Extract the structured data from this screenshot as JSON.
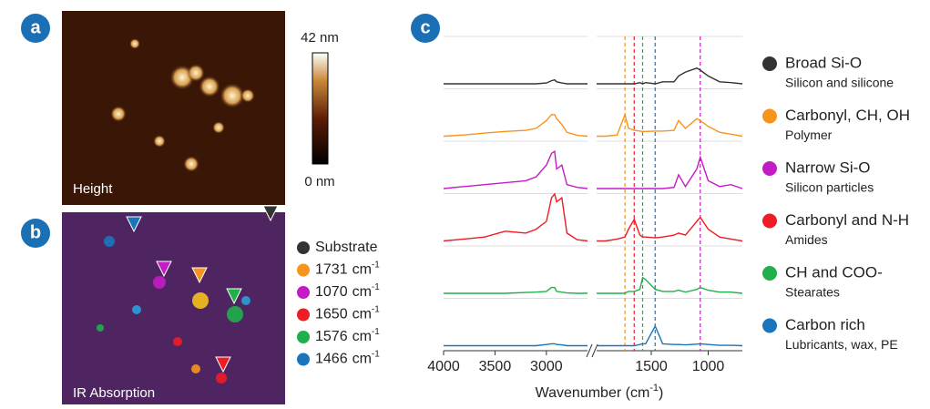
{
  "panels": {
    "a": {
      "label": "a",
      "caption": "Height"
    },
    "b": {
      "label": "b",
      "caption": "IR Absorption"
    },
    "c": {
      "label": "c"
    }
  },
  "colorbar": {
    "max_label": "42 nm",
    "min_label": "0 nm"
  },
  "markers": [
    {
      "name": "Substrate",
      "color": "#333333"
    },
    {
      "wavenumber": 1731,
      "unit": "cm",
      "unit_sup": "-1",
      "color": "#f7941d"
    },
    {
      "wavenumber": 1070,
      "unit": "cm",
      "unit_sup": "-1",
      "color": "#c41cc4"
    },
    {
      "wavenumber": 1650,
      "unit": "cm",
      "unit_sup": "-1",
      "color": "#ee1c25"
    },
    {
      "wavenumber": 1576,
      "unit": "cm",
      "unit_sup": "-1",
      "color": "#1fb04b"
    },
    {
      "wavenumber": 1466,
      "unit": "cm",
      "unit_sup": "-1",
      "color": "#1a75bc"
    }
  ],
  "chart_data": {
    "type": "line",
    "x_label": "Wavenumber (cm",
    "x_label_sup": "-1",
    "x_label_end": ")",
    "xlim_segments": [
      [
        4000,
        2600
      ],
      [
        1980,
        700
      ]
    ],
    "xticks": [
      4000,
      3500,
      3000,
      1500,
      1000
    ],
    "x": [
      4000,
      3800,
      3600,
      3400,
      3200,
      3100,
      3000,
      2950,
      2920,
      2900,
      2850,
      2800,
      2700,
      2600,
      1980,
      1900,
      1800,
      1731,
      1700,
      1650,
      1600,
      1576,
      1550,
      1466,
      1400,
      1300,
      1260,
      1200,
      1100,
      1070,
      1000,
      900,
      800,
      700
    ],
    "series": [
      {
        "name": "Broad Si-O",
        "subtitle": "Silicon and silicone",
        "color": "#333333",
        "values": [
          0,
          0,
          0,
          0,
          0,
          0,
          0.2,
          0.8,
          1,
          0.5,
          0.2,
          0,
          0,
          0,
          0,
          0,
          0,
          0,
          0,
          0,
          0.3,
          0,
          0.3,
          0,
          0.5,
          0.5,
          2,
          3,
          4,
          3.5,
          2,
          0.5,
          0.3,
          0
        ]
      },
      {
        "name": "Carbonyl, CH, OH",
        "subtitle": "Polymer",
        "color": "#f7941d",
        "values": [
          0,
          0.3,
          0.8,
          1.2,
          1.5,
          2,
          4,
          5.5,
          5.5,
          4.5,
          3,
          1,
          0.2,
          0,
          0,
          0,
          0.3,
          5.5,
          2,
          1.5,
          1.3,
          1.2,
          1.2,
          1.3,
          1.3,
          1.5,
          4,
          2,
          4.5,
          4,
          2.5,
          1,
          0.5,
          0
        ]
      },
      {
        "name": "Narrow Si-O",
        "subtitle": "Silicon particles",
        "color": "#c41cc4",
        "values": [
          0,
          0.5,
          1,
          1.5,
          2,
          3,
          6,
          9,
          9.5,
          5,
          6,
          1,
          0.3,
          0,
          0,
          0,
          0,
          0,
          0,
          0,
          0,
          0,
          0,
          0,
          0,
          0.3,
          3.5,
          0.5,
          5,
          8,
          2,
          0.5,
          1,
          0
        ]
      },
      {
        "name": "Carbonyl and N-H",
        "subtitle": "Amides",
        "color": "#ee1c25",
        "values": [
          0,
          0.5,
          1,
          2.5,
          2,
          3,
          5,
          11,
          12,
          10,
          11,
          2,
          0.3,
          0,
          0,
          0,
          0.5,
          1,
          3,
          5.5,
          1.5,
          1,
          1,
          0.8,
          1,
          1.5,
          2,
          1.5,
          5,
          6,
          3,
          1,
          0.5,
          0
        ]
      },
      {
        "name": "CH and COO-",
        "subtitle": "Stearates",
        "color": "#1fb04b",
        "values": [
          0,
          0,
          0,
          0,
          0.2,
          0.3,
          0.5,
          1.5,
          1.5,
          0.5,
          0.3,
          0.1,
          0,
          0,
          0,
          0,
          0,
          0,
          0.5,
          0.5,
          1,
          4,
          3.5,
          1,
          0.5,
          0.5,
          0.8,
          0.3,
          1,
          1.5,
          0.8,
          0.3,
          0.3,
          0
        ]
      },
      {
        "name": "Carbon rich",
        "subtitle": "Lubricants, wax, PE",
        "color": "#1a75bc",
        "values": [
          0,
          0,
          0,
          0,
          0,
          0,
          0.3,
          0.5,
          0.5,
          0.3,
          0.2,
          0,
          0,
          0,
          0,
          0,
          0,
          0,
          0,
          0,
          0.3,
          0.5,
          0.5,
          5,
          0.5,
          0.3,
          0.3,
          0.2,
          0.4,
          0.5,
          0.3,
          0.1,
          0.1,
          0
        ]
      }
    ]
  }
}
